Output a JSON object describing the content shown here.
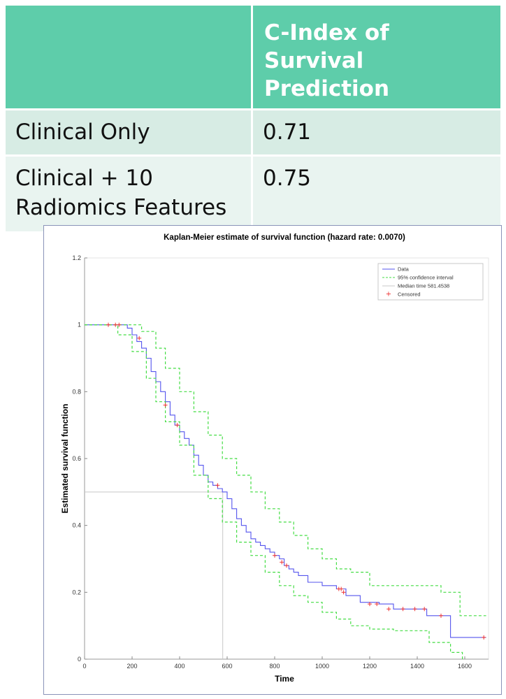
{
  "table": {
    "header": [
      "",
      "C-Index of Survival Prediction"
    ],
    "rows": [
      {
        "label": "Clinical Only",
        "value": "0.71"
      },
      {
        "label": "Clinical + 10 Radiomics Features",
        "value": "0.75"
      }
    ]
  },
  "colors": {
    "header_bg": "#5ecdaa",
    "row1_bg": "#d7ece4",
    "row2_bg": "#e9f4f0",
    "km_line": "#5555ee",
    "ci_line": "#44dd44",
    "censor": "#ee3333",
    "median_line": "#c8c8c8"
  },
  "chart_data": {
    "type": "line",
    "title": "Kaplan-Meier estimate of survival function (hazard rate: 0.0070)",
    "xlabel": "Time",
    "ylabel": "Estimated survival function",
    "xlim": [
      0,
      1700
    ],
    "ylim": [
      0,
      1.2
    ],
    "xticks": [
      0,
      200,
      400,
      600,
      800,
      1000,
      1200,
      1400,
      1600
    ],
    "yticks": [
      0,
      0.2,
      0.4,
      0.6,
      0.8,
      1,
      1.2
    ],
    "xtick_labels": [
      "0",
      "200",
      "400",
      "600",
      "800",
      "1000",
      "1200",
      "1400",
      "1600"
    ],
    "ytick_labels": [
      "0",
      "0.2",
      "0.4",
      "0.6",
      "0.8",
      "1",
      "1.2"
    ],
    "legend": [
      "Data",
      "95% confidence interval",
      "Median time 581.4538",
      "Censored"
    ],
    "legend_position": "top-right",
    "median_time": 581.4538,
    "series": [
      {
        "name": "Data",
        "style": "step",
        "x": [
          0,
          180,
          200,
          220,
          240,
          260,
          280,
          300,
          320,
          340,
          360,
          380,
          400,
          420,
          440,
          460,
          480,
          500,
          520,
          540,
          560,
          580,
          600,
          620,
          640,
          660,
          680,
          700,
          720,
          740,
          760,
          780,
          800,
          820,
          840,
          860,
          880,
          900,
          940,
          1000,
          1060,
          1100,
          1160,
          1240,
          1300,
          1440,
          1540,
          1690
        ],
        "y": [
          1.0,
          0.99,
          0.97,
          0.95,
          0.93,
          0.9,
          0.86,
          0.83,
          0.8,
          0.77,
          0.73,
          0.7,
          0.68,
          0.66,
          0.64,
          0.61,
          0.58,
          0.55,
          0.53,
          0.52,
          0.51,
          0.5,
          0.48,
          0.45,
          0.42,
          0.4,
          0.38,
          0.36,
          0.35,
          0.34,
          0.33,
          0.32,
          0.31,
          0.3,
          0.28,
          0.27,
          0.26,
          0.25,
          0.23,
          0.22,
          0.21,
          0.19,
          0.17,
          0.165,
          0.15,
          0.13,
          0.065,
          0.065
        ]
      },
      {
        "name": "95% confidence interval",
        "style": "dashed",
        "x": [
          0,
          160,
          240,
          300,
          340,
          400,
          460,
          520,
          580,
          640,
          700,
          760,
          820,
          880,
          940,
          1000,
          1060,
          1120,
          1200,
          1300,
          1500,
          1580,
          1690
        ],
        "y": [
          1.0,
          1.0,
          0.98,
          0.93,
          0.87,
          0.8,
          0.74,
          0.67,
          0.6,
          0.55,
          0.5,
          0.45,
          0.41,
          0.37,
          0.33,
          0.3,
          0.27,
          0.26,
          0.22,
          0.22,
          0.2,
          0.13,
          0.13
        ]
      },
      {
        "name": "95% confidence interval",
        "style": "dashed",
        "x": [
          0,
          140,
          200,
          260,
          300,
          340,
          400,
          460,
          520,
          580,
          640,
          700,
          760,
          820,
          880,
          940,
          1000,
          1060,
          1120,
          1200,
          1300,
          1450,
          1540,
          1590
        ],
        "y": [
          1.0,
          0.97,
          0.92,
          0.84,
          0.77,
          0.71,
          0.64,
          0.55,
          0.48,
          0.41,
          0.35,
          0.31,
          0.26,
          0.22,
          0.19,
          0.17,
          0.14,
          0.12,
          0.1,
          0.09,
          0.085,
          0.05,
          0.02,
          0.0
        ]
      }
    ],
    "censored": [
      {
        "x": 100,
        "y": 1.0
      },
      {
        "x": 130,
        "y": 1.0
      },
      {
        "x": 145,
        "y": 1.0
      },
      {
        "x": 230,
        "y": 0.96
      },
      {
        "x": 340,
        "y": 0.76
      },
      {
        "x": 390,
        "y": 0.7
      },
      {
        "x": 560,
        "y": 0.52
      },
      {
        "x": 800,
        "y": 0.31
      },
      {
        "x": 830,
        "y": 0.29
      },
      {
        "x": 850,
        "y": 0.28
      },
      {
        "x": 1070,
        "y": 0.21
      },
      {
        "x": 1080,
        "y": 0.21
      },
      {
        "x": 1090,
        "y": 0.2
      },
      {
        "x": 1200,
        "y": 0.165
      },
      {
        "x": 1230,
        "y": 0.165
      },
      {
        "x": 1280,
        "y": 0.15
      },
      {
        "x": 1340,
        "y": 0.15
      },
      {
        "x": 1390,
        "y": 0.15
      },
      {
        "x": 1430,
        "y": 0.15
      },
      {
        "x": 1500,
        "y": 0.13
      },
      {
        "x": 1680,
        "y": 0.065
      }
    ]
  }
}
